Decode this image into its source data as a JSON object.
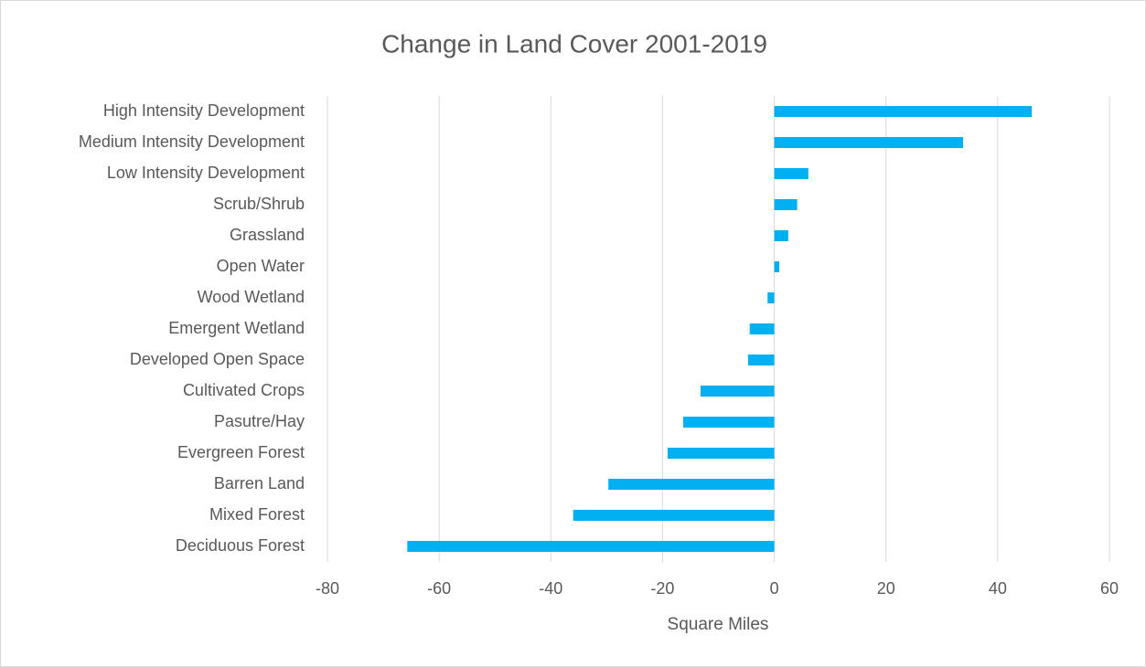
{
  "chart_data": {
    "type": "barh",
    "title": "Change in Land Cover 2001-2019",
    "x_label": "Square Miles",
    "categories": [
      "High Intensity Development",
      "Medium Intensity Development",
      "Low Intensity Development",
      "Scrub/Shrub",
      "Grassland",
      "Open Water",
      "Wood Wetland",
      "Emergent Wetland",
      "Developed Open Space",
      "Cultivated Crops",
      "Pasutre/Hay",
      "Evergreen Forest",
      "Barren Land",
      "Mixed Forest",
      "Deciduous Forest"
    ],
    "values": [
      46.1,
      33.8,
      6.1,
      4.1,
      2.5,
      0.9,
      -1.2,
      -4.4,
      -4.7,
      -13.2,
      -16.3,
      -19.1,
      -29.7,
      -36.0,
      -65.7
    ],
    "color": "#00b0f0",
    "xlim": [
      -80,
      60
    ],
    "xticks": [
      -80,
      -60,
      -40,
      -20,
      0,
      20,
      40,
      60
    ],
    "grid": true
  }
}
